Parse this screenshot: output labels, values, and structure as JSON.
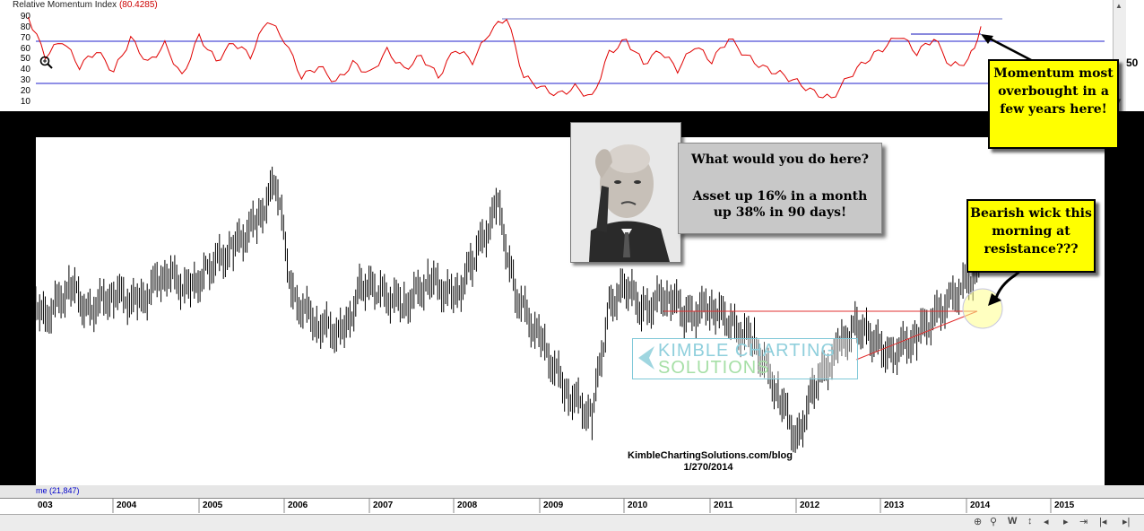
{
  "rmi": {
    "title": "Relative Momentum Index",
    "value": "(80.4285)",
    "ticks": [
      "90",
      "80",
      "70",
      "60",
      "50",
      "40",
      "30",
      "20",
      "10"
    ],
    "right_label": "50",
    "color": "#e00000"
  },
  "callouts": {
    "momentum": "Momentum most overbought in a few years here!",
    "bearish": "Bearish wick this morning at resistance???",
    "question": "What would you do here?",
    "asset": "Asset up 16% in a month up 38% in 90 days!"
  },
  "watermark": {
    "line1": "KIMBLE CHARTING",
    "line2": "SOLUTIONS"
  },
  "credit": {
    "site": "KimbleChartingSolutions.com/blog",
    "date": "1/270/2014"
  },
  "volume": {
    "label": "me (21,847)"
  },
  "axis_years": [
    "003",
    "2004",
    "2005",
    "2006",
    "2007",
    "2008",
    "2009",
    "2010",
    "2011",
    "2012",
    "2013",
    "2014",
    "2015"
  ],
  "nav_icons": [
    "zoom-in",
    "magnifier",
    "week-label",
    "scroll-left",
    "scroll-right",
    "scroll-end"
  ],
  "nav_labels": {
    "week": "W"
  },
  "chart_data": [
    {
      "type": "line",
      "title": "Relative Momentum Index",
      "ylim": [
        0,
        100
      ],
      "ticks": [
        10,
        20,
        30,
        40,
        50,
        60,
        70,
        80,
        90
      ],
      "reference_lines": [
        70,
        30
      ],
      "x": [
        2002.9,
        2003.1,
        2003.3,
        2003.5,
        2003.7,
        2003.9,
        2004.1,
        2004.3,
        2004.5,
        2004.7,
        2004.9,
        2005.1,
        2005.3,
        2005.5,
        2005.7,
        2005.9,
        2006.1,
        2006.3,
        2006.5,
        2006.7,
        2006.9,
        2007.1,
        2007.3,
        2007.5,
        2007.7,
        2007.9,
        2008.1,
        2008.3,
        2008.5,
        2008.7,
        2008.9,
        2009.1,
        2009.3,
        2009.5,
        2009.7,
        2009.9,
        2010.1,
        2010.3,
        2010.5,
        2010.7,
        2010.9,
        2011.1,
        2011.3,
        2011.5,
        2011.7,
        2011.9,
        2012.1,
        2012.3,
        2012.5,
        2012.7,
        2012.9,
        2013.1,
        2013.3,
        2013.5,
        2013.7,
        2013.9,
        2014.05
      ],
      "values": [
        92,
        55,
        70,
        45,
        60,
        40,
        72,
        48,
        66,
        35,
        74,
        50,
        68,
        55,
        90,
        70,
        35,
        45,
        30,
        48,
        38,
        60,
        42,
        55,
        35,
        62,
        50,
        78,
        92,
        35,
        25,
        18,
        25,
        15,
        58,
        70,
        48,
        60,
        42,
        65,
        50,
        72,
        55,
        44,
        38,
        30,
        20,
        14,
        35,
        50,
        62,
        75,
        58,
        72,
        45,
        50,
        80
      ]
    },
    {
      "type": "line",
      "series": [
        {
          "name": "",
          "values": [
            62,
            52,
            62,
            54,
            60,
            56,
            67,
            60,
            68,
            74,
            84,
            96,
            58,
            50,
            46,
            63,
            60,
            56,
            64,
            58,
            70,
            88,
            60,
            44,
            28,
            20,
            56,
            62,
            54,
            60,
            52,
            56,
            50,
            44,
            26,
            12,
            30,
            42,
            50,
            44,
            40,
            46,
            58,
            68
          ]
        }
      ],
      "x": [
        2002.9,
        2003.1,
        2003.4,
        2003.6,
        2003.9,
        2004.2,
        2004.5,
        2004.8,
        2005.0,
        2005.3,
        2005.6,
        2005.8,
        2006.0,
        2006.3,
        2006.6,
        2006.8,
        2007.0,
        2007.3,
        2007.6,
        2007.9,
        2008.1,
        2008.4,
        2008.6,
        2008.9,
        2009.2,
        2009.5,
        2009.7,
        2009.9,
        2010.1,
        2010.4,
        2010.6,
        2010.9,
        2011.1,
        2011.4,
        2011.7,
        2011.9,
        2012.1,
        2012.4,
        2012.6,
        2012.8,
        2013.0,
        2013.3,
        2013.7,
        2014.05
      ],
      "annotations": [
        "resistance line",
        "rising trend line"
      ]
    }
  ]
}
